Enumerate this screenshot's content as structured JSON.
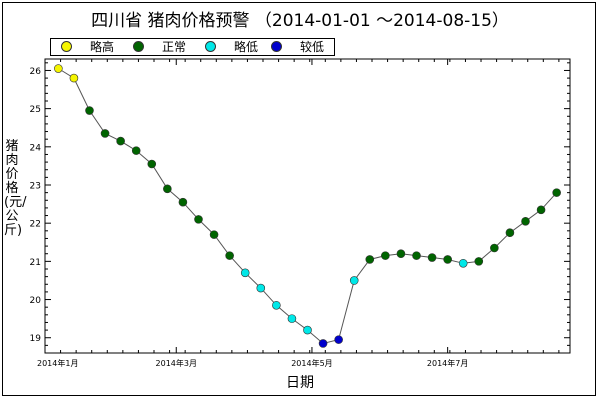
{
  "chart_data": {
    "type": "scatter",
    "title": "四川省 猪肉价格预警 （2014-01-01 ～2014-08-15）",
    "xlabel": "日期",
    "ylabel": "猪肉价格(元/公斤)",
    "ylim": [
      18.6,
      26.3
    ],
    "yticks": [
      19,
      20,
      21,
      22,
      23,
      24,
      25,
      26
    ],
    "xticks": [
      {
        "label": "2014年1月",
        "day": 0
      },
      {
        "label": "2014年3月",
        "day": 59
      },
      {
        "label": "2014年5月",
        "day": 120
      },
      {
        "label": "2014年7月",
        "day": 181
      }
    ],
    "xlim_days": [
      0,
      226
    ],
    "legend_position": "top-left",
    "categories": [
      {
        "key": "high",
        "label": "略高",
        "color": "#f5f500"
      },
      {
        "key": "normal",
        "label": "正常",
        "color": "#006400"
      },
      {
        "key": "low",
        "label": "略低",
        "color": "#00e8e8"
      },
      {
        "key": "lower",
        "label": "较低",
        "color": "#0000cc"
      }
    ],
    "points": [
      {
        "day": 6,
        "value": 26.05,
        "cat": "high"
      },
      {
        "day": 13,
        "value": 25.8,
        "cat": "high"
      },
      {
        "day": 20,
        "value": 24.95,
        "cat": "normal"
      },
      {
        "day": 27,
        "value": 24.35,
        "cat": "normal"
      },
      {
        "day": 34,
        "value": 24.15,
        "cat": "normal"
      },
      {
        "day": 41,
        "value": 23.9,
        "cat": "normal"
      },
      {
        "day": 48,
        "value": 23.55,
        "cat": "normal"
      },
      {
        "day": 55,
        "value": 22.9,
        "cat": "normal"
      },
      {
        "day": 62,
        "value": 22.55,
        "cat": "normal"
      },
      {
        "day": 69,
        "value": 22.1,
        "cat": "normal"
      },
      {
        "day": 76,
        "value": 21.7,
        "cat": "normal"
      },
      {
        "day": 83,
        "value": 21.15,
        "cat": "normal"
      },
      {
        "day": 90,
        "value": 20.7,
        "cat": "low"
      },
      {
        "day": 97,
        "value": 20.3,
        "cat": "low"
      },
      {
        "day": 104,
        "value": 19.85,
        "cat": "low"
      },
      {
        "day": 111,
        "value": 19.5,
        "cat": "low"
      },
      {
        "day": 118,
        "value": 19.2,
        "cat": "low"
      },
      {
        "day": 125,
        "value": 18.85,
        "cat": "lower"
      },
      {
        "day": 132,
        "value": 18.95,
        "cat": "lower"
      },
      {
        "day": 139,
        "value": 20.5,
        "cat": "low"
      },
      {
        "day": 146,
        "value": 21.05,
        "cat": "normal"
      },
      {
        "day": 153,
        "value": 21.15,
        "cat": "normal"
      },
      {
        "day": 160,
        "value": 21.2,
        "cat": "normal"
      },
      {
        "day": 167,
        "value": 21.15,
        "cat": "normal"
      },
      {
        "day": 174,
        "value": 21.1,
        "cat": "normal"
      },
      {
        "day": 181,
        "value": 21.05,
        "cat": "normal"
      },
      {
        "day": 188,
        "value": 20.95,
        "cat": "low"
      },
      {
        "day": 195,
        "value": 21.0,
        "cat": "normal"
      },
      {
        "day": 202,
        "value": 21.35,
        "cat": "normal"
      },
      {
        "day": 209,
        "value": 21.75,
        "cat": "normal"
      },
      {
        "day": 216,
        "value": 22.05,
        "cat": "normal"
      },
      {
        "day": 223,
        "value": 22.35,
        "cat": "normal"
      },
      {
        "day": 230,
        "value": 22.8,
        "cat": "normal"
      }
    ]
  }
}
